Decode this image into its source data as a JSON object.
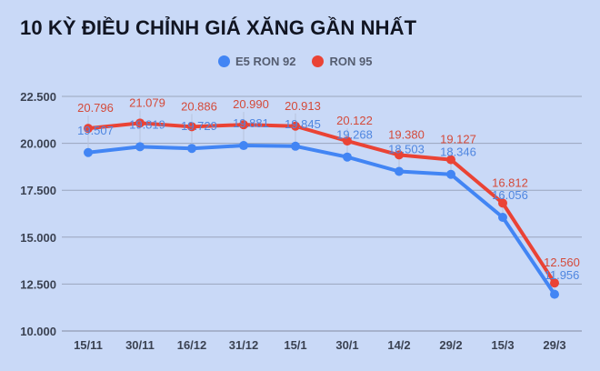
{
  "title": "10 KỲ ĐIỀU CHỈNH GIÁ XĂNG GẦN NHẤT",
  "legend": [
    {
      "label": "E5 RON 92",
      "color": "#4285f4"
    },
    {
      "label": "RON 95",
      "color": "#ea4335"
    }
  ],
  "chart_data": {
    "type": "line",
    "title": "10 KỲ ĐIỀU CHỈNH GIÁ XĂNG GẦN NHẤT",
    "xlabel": "",
    "ylabel": "",
    "categories": [
      "15/11",
      "30/11",
      "16/12",
      "31/12",
      "15/1",
      "30/1",
      "14/2",
      "29/2",
      "15/3",
      "29/3"
    ],
    "series": [
      {
        "name": "E5 RON 92",
        "color": "#4285f4",
        "values": [
          19507,
          19819,
          19729,
          19881,
          19845,
          19268,
          18503,
          18346,
          16056,
          11956
        ],
        "labels": [
          "19.507",
          "19.819",
          "19.729",
          "19.881",
          "19.845",
          "19.268",
          "18.503",
          "18.346",
          "16.056",
          "11.956"
        ]
      },
      {
        "name": "RON 95",
        "color": "#ea4335",
        "values": [
          20796,
          21079,
          20886,
          20990,
          20913,
          20122,
          19380,
          19127,
          16812,
          12560
        ],
        "labels": [
          "20.796",
          "21.079",
          "20.886",
          "20.990",
          "20.913",
          "20.122",
          "19.380",
          "19.127",
          "16.812",
          "12.560"
        ]
      }
    ],
    "yticks": [
      "10.000",
      "12.500",
      "15.000",
      "17.500",
      "20.000",
      "22.500"
    ],
    "ylim": [
      10000,
      22500
    ],
    "grid": true,
    "legend_position": "top"
  }
}
